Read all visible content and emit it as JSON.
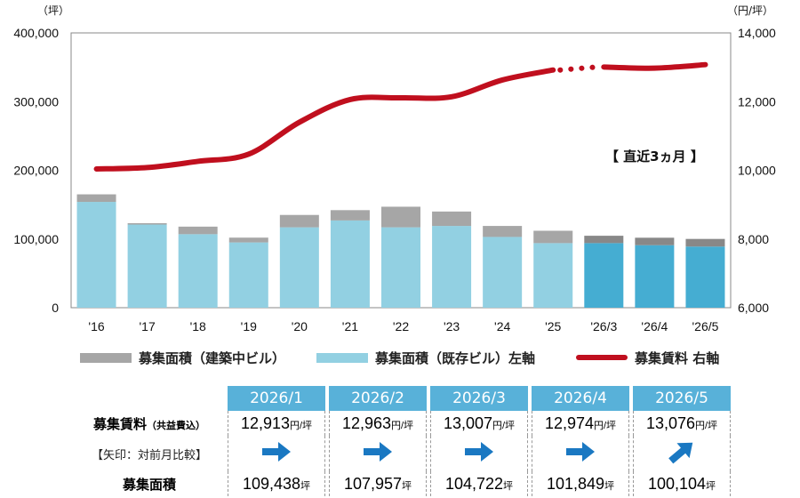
{
  "chart_data": {
    "type": "bar",
    "left_axis": {
      "unit_label": "（坪）",
      "ticks": [
        "400,000",
        "300,000",
        "200,000",
        "100,000",
        "0"
      ],
      "ylim": [
        0,
        400000
      ]
    },
    "right_axis": {
      "unit_label": "（円/坪）",
      "ticks": [
        "14,000",
        "12,000",
        "10,000",
        "8,000",
        "6,000"
      ],
      "ylim": [
        6000,
        14000
      ]
    },
    "categories": [
      "'16",
      "'17",
      "'18",
      "'19",
      "'20",
      "'21",
      "'22",
      "'23",
      "'24",
      "'25",
      "'26/3",
      "'26/4",
      "'26/5"
    ],
    "series": [
      {
        "name": "募集面積（既存ビル）左軸",
        "kind": "bar",
        "color": "#92d0e2",
        "recent_color": "#45add2",
        "values": [
          154000,
          121000,
          107000,
          95000,
          117000,
          127000,
          117000,
          119000,
          103000,
          94000,
          94000,
          91000,
          89000
        ]
      },
      {
        "name": "募集面積（建築中ビル）",
        "kind": "bar_stack",
        "color": "#a6a6a6",
        "recent_color": "#888888",
        "values": [
          11000,
          2000,
          11000,
          7000,
          18000,
          15000,
          30000,
          21000,
          16000,
          18000,
          10722,
          10849,
          11104
        ]
      },
      {
        "name": "募集賃料 右軸",
        "kind": "line",
        "color": "#c00f1e",
        "values": [
          10040,
          10080,
          10260,
          10470,
          11400,
          12060,
          12110,
          12140,
          12630,
          12920,
          13007,
          12974,
          13076
        ]
      }
    ],
    "annotation": "【 直近3ヵ月 】"
  },
  "table": {
    "months": [
      "2026/1",
      "2026/2",
      "2026/3",
      "2026/4",
      "2026/5"
    ],
    "rent_label": "募集賃料",
    "rent_label_note": "（共益費込）",
    "arrow_label": "【矢印：対前月比較】",
    "rent_unit": "円/坪",
    "rent_values": [
      "12,913",
      "12,963",
      "13,007",
      "12,974",
      "13,076"
    ],
    "arrow_directions": [
      "flat",
      "flat",
      "flat",
      "flat",
      "up"
    ],
    "area_label": "募集面積",
    "area_unit": "坪",
    "area_values": [
      "109,438",
      "107,957",
      "104,722",
      "101,849",
      "100,104"
    ],
    "arrow_color": "#1a78c2"
  }
}
